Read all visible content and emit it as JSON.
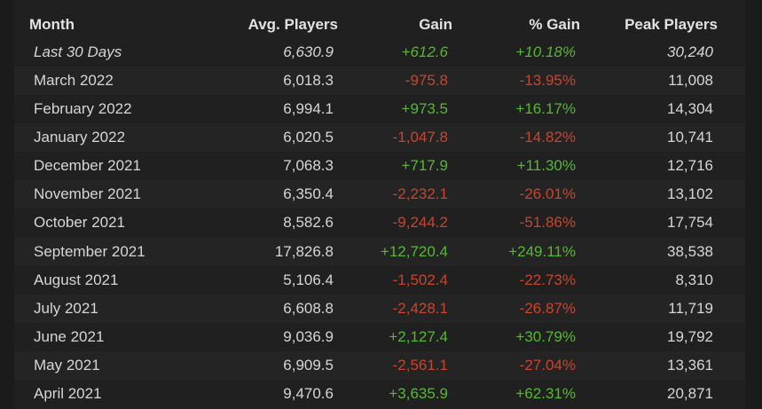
{
  "table": {
    "headers": [
      "Month",
      "Avg. Players",
      "Gain",
      "% Gain",
      "Peak Players"
    ],
    "rows": [
      [
        "Last 30 Days",
        "6,630.9",
        "+612.6",
        "+10.18%",
        "30,240"
      ],
      [
        "March 2022",
        "6,018.3",
        "-975.8",
        "-13.95%",
        "11,008"
      ],
      [
        "February 2022",
        "6,994.1",
        "+973.5",
        "+16.17%",
        "14,304"
      ],
      [
        "January 2022",
        "6,020.5",
        "-1,047.8",
        "-14.82%",
        "10,741"
      ],
      [
        "December 2021",
        "7,068.3",
        "+717.9",
        "+11.30%",
        "12,716"
      ],
      [
        "November 2021",
        "6,350.4",
        "-2,232.1",
        "-26.01%",
        "13,102"
      ],
      [
        "October 2021",
        "8,582.6",
        "-9,244.2",
        "-51.86%",
        "17,754"
      ],
      [
        "September 2021",
        "17,826.8",
        "+12,720.4",
        "+249.11%",
        "38,538"
      ],
      [
        "August 2021",
        "5,106.4",
        "-1,502.4",
        "-22.73%",
        "8,310"
      ],
      [
        "July 2021",
        "6,608.8",
        "-2,428.1",
        "-26.87%",
        "11,719"
      ],
      [
        "June 2021",
        "9,036.9",
        "+2,127.4",
        "+30.79%",
        "19,792"
      ],
      [
        "May 2021",
        "6,909.5",
        "-2,561.1",
        "-27.04%",
        "13,361"
      ],
      [
        "April 2021",
        "9,470.6",
        "+3,635.9",
        "+62.31%",
        "20,871"
      ]
    ],
    "italic_rows": [
      0
    ],
    "colored_columns": [
      2,
      3
    ],
    "positive_color": "#57b82f",
    "negative_color": "#c8452d"
  }
}
